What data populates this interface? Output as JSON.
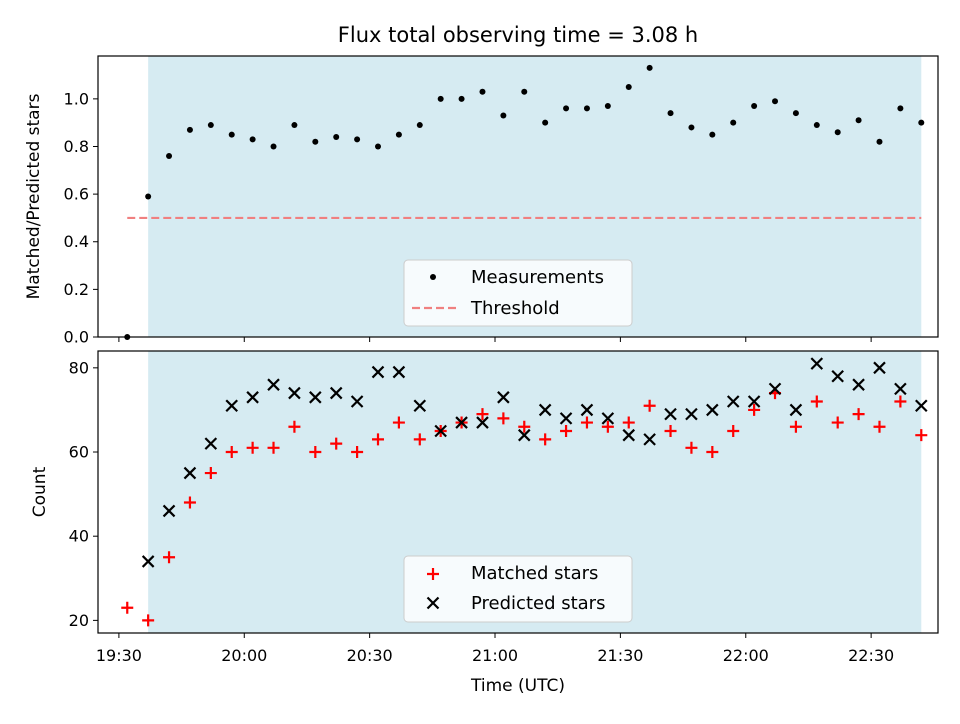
{
  "title": "Flux total observing time = 3.08 h",
  "colors": {
    "night_band": "#add8e6",
    "measurement": "#000000",
    "threshold": "#f08080",
    "matched": "#ff0000",
    "predicted": "#000000"
  },
  "chart_data": [
    {
      "type": "scatter",
      "panel": "top",
      "ylabel": "Matched/Predicted stars",
      "ylim": [
        0.0,
        1.18
      ],
      "yticks": [
        0.0,
        0.2,
        0.4,
        0.6,
        0.8,
        1.0
      ],
      "ytick_labels": [
        "0.0",
        "0.2",
        "0.4",
        "0.6",
        "0.8",
        "1.0"
      ],
      "x": [
        "19:32",
        "19:37",
        "19:42",
        "19:47",
        "19:52",
        "19:57",
        "20:02",
        "20:07",
        "20:12",
        "20:17",
        "20:22",
        "20:27",
        "20:32",
        "20:37",
        "20:42",
        "20:47",
        "20:52",
        "20:57",
        "21:02",
        "21:07",
        "21:12",
        "21:17",
        "21:22",
        "21:27",
        "21:32",
        "21:37",
        "21:42",
        "21:47",
        "21:52",
        "21:57",
        "22:02",
        "22:07",
        "22:12",
        "22:17",
        "22:22",
        "22:27",
        "22:32",
        "22:37",
        "22:42"
      ],
      "shaded_region": [
        "19:37",
        "22:42"
      ],
      "series": [
        {
          "name": "Measurements",
          "marker": "dot",
          "values": [
            0.0,
            0.59,
            0.76,
            0.87,
            0.89,
            0.85,
            0.83,
            0.8,
            0.89,
            0.82,
            0.84,
            0.83,
            0.8,
            0.85,
            0.89,
            1.0,
            1.0,
            1.03,
            0.93,
            1.03,
            0.9,
            0.96,
            0.96,
            0.97,
            1.05,
            1.13,
            0.94,
            0.88,
            0.85,
            0.9,
            0.97,
            0.99,
            0.94,
            0.89,
            0.86,
            0.91,
            0.82,
            0.96,
            0.9
          ]
        },
        {
          "name": "Threshold",
          "style": "dashed",
          "value": 0.5,
          "x_range": [
            "19:32",
            "22:42"
          ]
        }
      ],
      "legend_placement": "lower-center"
    },
    {
      "type": "scatter",
      "panel": "bottom",
      "xlabel": "Time (UTC)",
      "ylabel": "Count",
      "ylim": [
        17,
        84
      ],
      "yticks": [
        20,
        40,
        60,
        80
      ],
      "ytick_labels": [
        "20",
        "40",
        "60",
        "80"
      ],
      "xlim": [
        "19:25",
        "22:46"
      ],
      "xtick_labels": [
        "19:30",
        "20:00",
        "20:30",
        "21:00",
        "21:30",
        "22:00",
        "22:30"
      ],
      "x": [
        "19:32",
        "19:37",
        "19:42",
        "19:47",
        "19:52",
        "19:57",
        "20:02",
        "20:07",
        "20:12",
        "20:17",
        "20:22",
        "20:27",
        "20:32",
        "20:37",
        "20:42",
        "20:47",
        "20:52",
        "20:57",
        "21:02",
        "21:07",
        "21:12",
        "21:17",
        "21:22",
        "21:27",
        "21:32",
        "21:37",
        "21:42",
        "21:47",
        "21:52",
        "21:57",
        "22:02",
        "22:07",
        "22:12",
        "22:17",
        "22:22",
        "22:27",
        "22:32",
        "22:37",
        "22:42"
      ],
      "shaded_region": [
        "19:37",
        "22:42"
      ],
      "series": [
        {
          "name": "Matched stars",
          "marker": "plus",
          "values": [
            23,
            20,
            35,
            48,
            55,
            60,
            61,
            61,
            66,
            60,
            62,
            60,
            63,
            67,
            63,
            65,
            67,
            69,
            68,
            66,
            63,
            65,
            67,
            66,
            67,
            71,
            65,
            61,
            60,
            65,
            70,
            74,
            66,
            72,
            67,
            69,
            66,
            72,
            64
          ]
        },
        {
          "name": "Predicted stars",
          "marker": "x",
          "values": [
            null,
            34,
            46,
            55,
            62,
            71,
            73,
            76,
            74,
            73,
            74,
            72,
            79,
            79,
            71,
            65,
            67,
            67,
            73,
            64,
            70,
            68,
            70,
            68,
            64,
            63,
            69,
            69,
            70,
            72,
            72,
            75,
            70,
            81,
            78,
            76,
            80,
            75,
            71
          ]
        }
      ],
      "legend_placement": "lower-center"
    }
  ]
}
